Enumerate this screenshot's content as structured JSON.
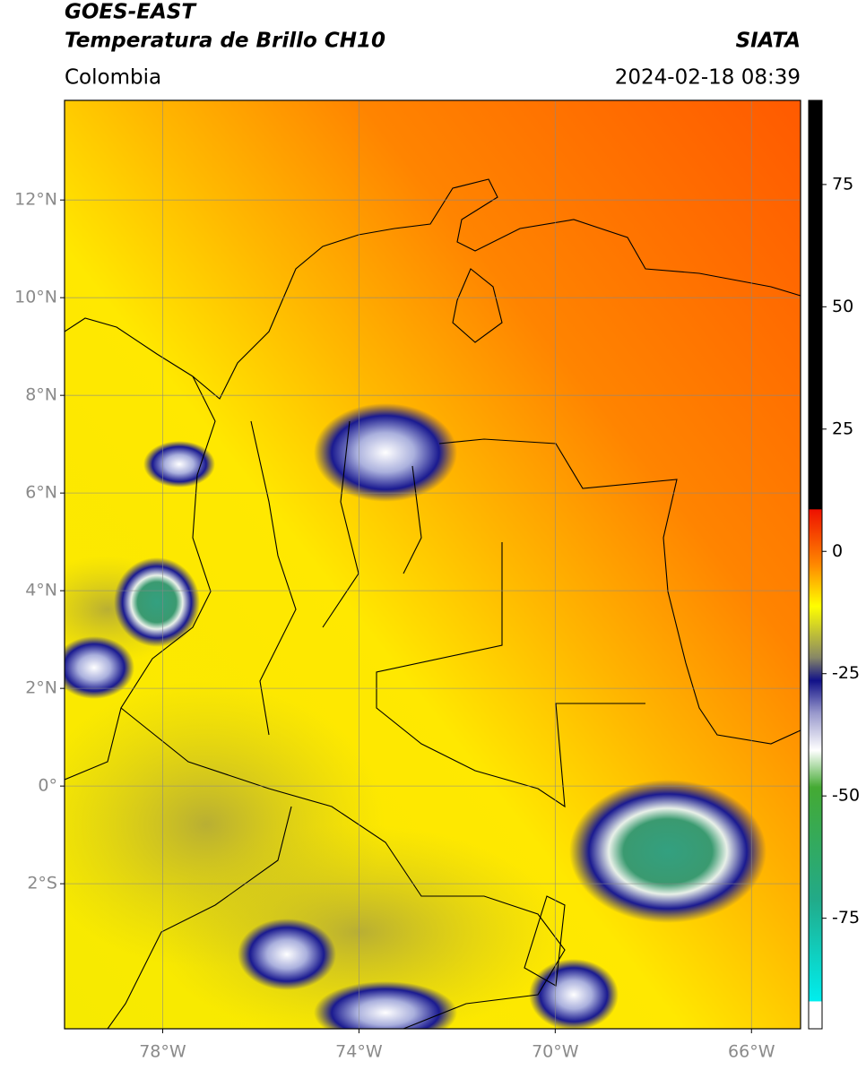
{
  "header": {
    "title": "GOES-EAST",
    "subtitle": "Temperatura de Brillo CH10",
    "source": "SIATA",
    "region": "Colombia",
    "datetime": "2024-02-18 08:39"
  },
  "map": {
    "xlim": [
      -80,
      -65
    ],
    "ylim": [
      -4.97,
      14.04
    ],
    "xticks": [
      {
        "value": -78,
        "label": "78°W"
      },
      {
        "value": -74,
        "label": "74°W"
      },
      {
        "value": -70,
        "label": "70°W"
      },
      {
        "value": -66,
        "label": "66°W"
      }
    ],
    "yticks": [
      {
        "value": 12,
        "label": "12°N"
      },
      {
        "value": 10,
        "label": "10°N"
      },
      {
        "value": 8,
        "label": "8°N"
      },
      {
        "value": 6,
        "label": "6°N"
      },
      {
        "value": 4,
        "label": "4°N"
      },
      {
        "value": 2,
        "label": "2°N"
      },
      {
        "value": 0,
        "label": "0°"
      },
      {
        "value": -2,
        "label": "2°S"
      }
    ],
    "grid": true
  },
  "colorbar": {
    "lim": [
      -97.6,
      92.2
    ],
    "ticks": [
      75,
      50,
      25,
      0,
      -25,
      -50,
      -75
    ]
  }
}
